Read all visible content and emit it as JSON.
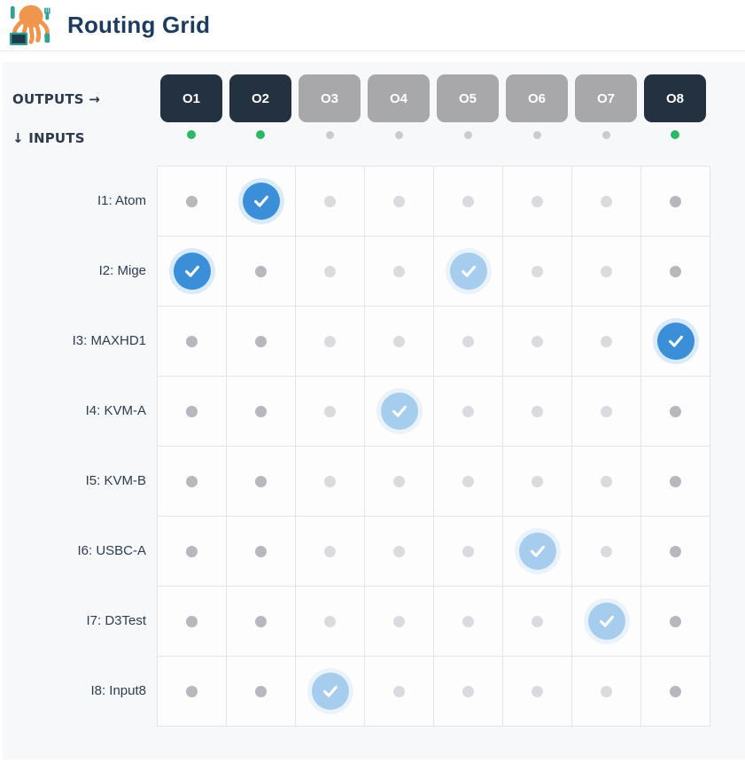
{
  "header": {
    "title": "Routing Grid",
    "logo": "octopus-logo-icon"
  },
  "axes": {
    "outputs_label": "OUTPUTS →",
    "inputs_label": "↓ INPUTS"
  },
  "outputs": [
    {
      "label": "O1",
      "online": true
    },
    {
      "label": "O2",
      "online": true
    },
    {
      "label": "O3",
      "online": false
    },
    {
      "label": "O4",
      "online": false
    },
    {
      "label": "O5",
      "online": false
    },
    {
      "label": "O6",
      "online": false
    },
    {
      "label": "O7",
      "online": false
    },
    {
      "label": "O8",
      "online": true
    }
  ],
  "inputs": [
    {
      "label": "I1: Atom"
    },
    {
      "label": "I2: Mige"
    },
    {
      "label": "I3: MAXHD1"
    },
    {
      "label": "I4: KVM-A"
    },
    {
      "label": "I5: KVM-B"
    },
    {
      "label": "I6: USBC-A"
    },
    {
      "label": "I7: D3Test"
    },
    {
      "label": "I8: Input8"
    }
  ],
  "routes": [
    {
      "input": "I1",
      "output": "O2",
      "state": "active"
    },
    {
      "input": "I2",
      "output": "O1",
      "state": "active"
    },
    {
      "input": "I2",
      "output": "O5",
      "state": "pending"
    },
    {
      "input": "I3",
      "output": "O8",
      "state": "active"
    },
    {
      "input": "I4",
      "output": "O4",
      "state": "pending"
    },
    {
      "input": "I6",
      "output": "O6",
      "state": "pending"
    },
    {
      "input": "I7",
      "output": "O7",
      "state": "pending"
    },
    {
      "input": "I8",
      "output": "O3",
      "state": "pending"
    }
  ],
  "colors": {
    "active_route": "#3b8ed8",
    "pending_route": "#a6cdee",
    "online_green": "#2eb863",
    "output_online_bg": "#243140",
    "output_offline_bg": "#a8a8ab",
    "title_text": "#1d3b5e",
    "panel_bg": "#f7f8f9"
  }
}
